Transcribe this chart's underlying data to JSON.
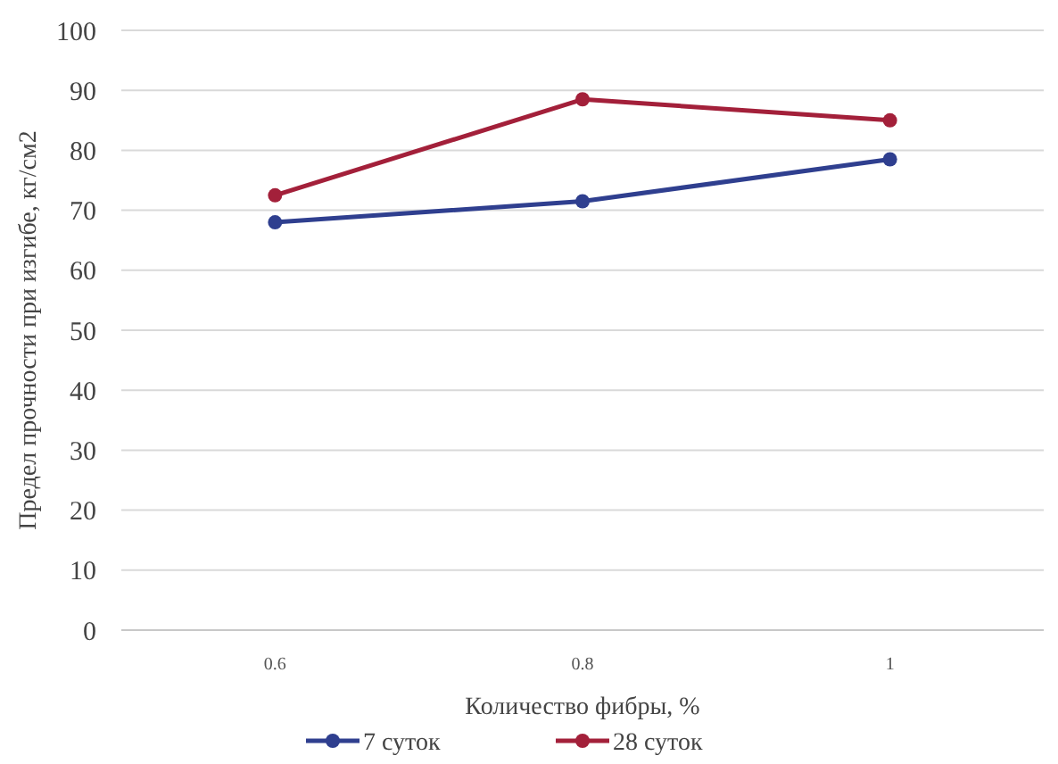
{
  "chart_data": {
    "type": "line",
    "xlabel": "Количество фибры, %",
    "ylabel": "Предел прочности при изгибе, кг/см2",
    "categories": [
      "0.6",
      "0.8",
      "1"
    ],
    "series": [
      {
        "name": "7 суток",
        "color": "#2f3f8f",
        "values": [
          68,
          71.5,
          78.5
        ]
      },
      {
        "name": "28 суток",
        "color": "#a3203a",
        "values": [
          72.5,
          88.5,
          85
        ]
      }
    ],
    "ylim": [
      0,
      100
    ],
    "yticks": [
      0,
      10,
      20,
      30,
      40,
      50,
      60,
      70,
      80,
      90,
      100
    ],
    "grid": "y",
    "legend": "bottom",
    "marker": "circle",
    "line_style": "solid"
  }
}
